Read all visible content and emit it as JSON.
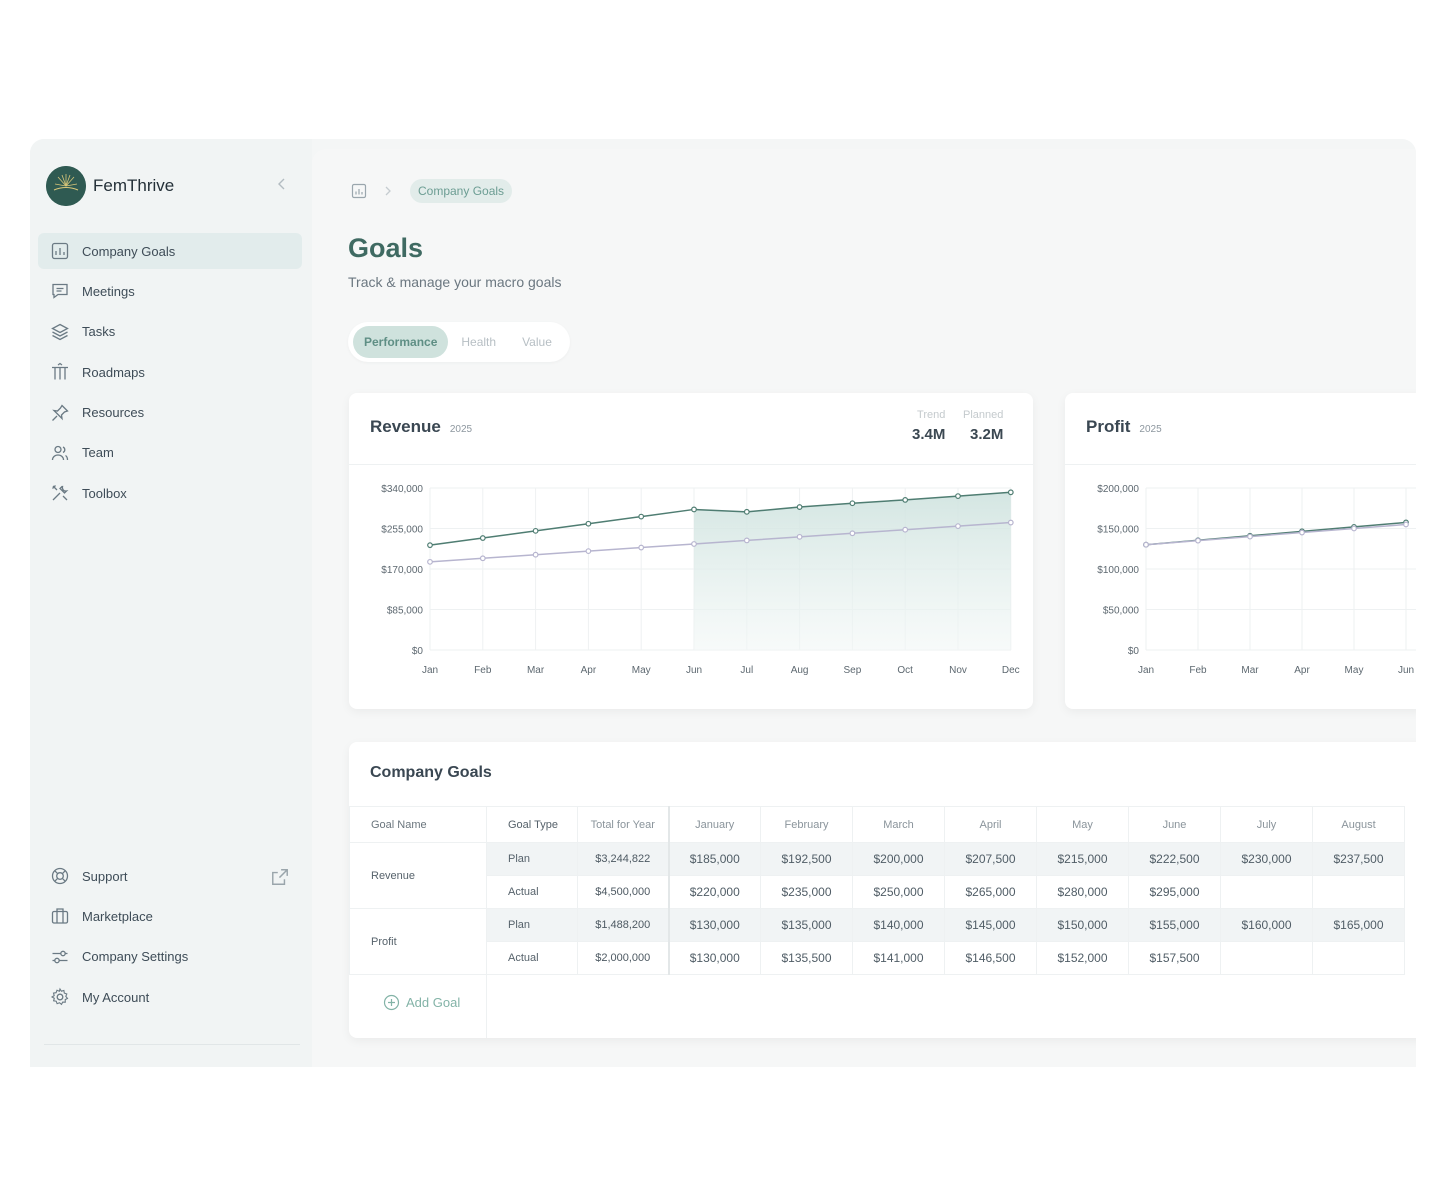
{
  "brand": {
    "name": "FemThrive"
  },
  "colors": {
    "accent": "#3f6a62",
    "accent_light": "#e2ecea",
    "series_trend": "#4f7d72",
    "series_planned": "#b7b5cf"
  },
  "sidebar": {
    "items": [
      {
        "label": "Company Goals",
        "icon": "chart-board-icon",
        "active": true
      },
      {
        "label": "Meetings",
        "icon": "chat-icon"
      },
      {
        "label": "Tasks",
        "icon": "layers-icon"
      },
      {
        "label": "Roadmaps",
        "icon": "roadmap-icon"
      },
      {
        "label": "Resources",
        "icon": "pin-icon"
      },
      {
        "label": "Team",
        "icon": "users-icon"
      },
      {
        "label": "Toolbox",
        "icon": "tools-icon"
      }
    ],
    "bottom_items": [
      {
        "label": "Support",
        "icon": "lifebuoy-icon"
      },
      {
        "label": "Marketplace",
        "icon": "briefcase-icon"
      },
      {
        "label": "Company Settings",
        "icon": "sliders-icon"
      },
      {
        "label": "My Account",
        "icon": "gear-icon"
      }
    ]
  },
  "breadcrumb": {
    "current": "Company Goals"
  },
  "page": {
    "title": "Goals",
    "subtitle": "Track & manage your macro goals"
  },
  "tabs": [
    {
      "label": "Performance",
      "active": true
    },
    {
      "label": "Health"
    },
    {
      "label": "Value"
    }
  ],
  "revenue_card": {
    "title": "Revenue",
    "year": "2025",
    "trend_label": "Trend",
    "trend_value": "3.4M",
    "planned_label": "Planned",
    "planned_value": "3.2M"
  },
  "profit_card": {
    "title": "Profit",
    "year": "2025"
  },
  "chart_data": [
    {
      "type": "line",
      "title": "Revenue",
      "categories": [
        "Jan",
        "Feb",
        "Mar",
        "Apr",
        "May",
        "Jun",
        "Jul",
        "Aug",
        "Sep",
        "Oct",
        "Nov",
        "Dec"
      ],
      "y_ticks": [
        "$340,000",
        "$255,000",
        "$170,000",
        "$85,000",
        "$0"
      ],
      "ylim": [
        0,
        340000
      ],
      "grid": true,
      "series": [
        {
          "name": "Trend",
          "values": [
            220000,
            235000,
            250000,
            265000,
            280000,
            295000,
            290000,
            300000,
            308000,
            315000,
            323000,
            331000
          ]
        },
        {
          "name": "Planned",
          "values": [
            185000,
            192500,
            200000,
            207500,
            215000,
            222500,
            230000,
            237500,
            245000,
            252500,
            260000,
            267500
          ]
        }
      ]
    },
    {
      "type": "line",
      "title": "Profit",
      "categories": [
        "Jan",
        "Feb",
        "Mar",
        "Apr",
        "May",
        "Jun"
      ],
      "y_ticks": [
        "$200,000",
        "$150,000",
        "$100,000",
        "$50,000",
        "$0"
      ],
      "ylim": [
        0,
        200000
      ],
      "grid": true,
      "series": [
        {
          "name": "Actual",
          "values": [
            130000,
            135500,
            141000,
            146500,
            152000,
            157500
          ]
        },
        {
          "name": "Plan",
          "values": [
            130000,
            135000,
            140000,
            145000,
            150000,
            155000
          ]
        }
      ]
    }
  ],
  "goals_table": {
    "title": "Company Goals",
    "headers": [
      "Goal Name",
      "Goal Type",
      "Total for Year",
      "January",
      "February",
      "March",
      "April",
      "May",
      "June",
      "July",
      "August"
    ],
    "rows": [
      {
        "name": "Revenue",
        "type": "Plan",
        "total": "$3,244,822",
        "months": [
          "$185,000",
          "$192,500",
          "$200,000",
          "$207,500",
          "$215,000",
          "$222,500",
          "$230,000",
          "$237,500"
        ]
      },
      {
        "name": "",
        "type": "Actual",
        "total": "$4,500,000",
        "months": [
          "$220,000",
          "$235,000",
          "$250,000",
          "$265,000",
          "$280,000",
          "$295,000",
          "",
          ""
        ]
      },
      {
        "name": "Profit",
        "type": "Plan",
        "total": "$1,488,200",
        "months": [
          "$130,000",
          "$135,000",
          "$140,000",
          "$145,000",
          "$150,000",
          "$155,000",
          "$160,000",
          "$165,000"
        ]
      },
      {
        "name": "",
        "type": "Actual",
        "total": "$2,000,000",
        "months": [
          "$130,000",
          "$135,500",
          "$141,000",
          "$146,500",
          "$152,000",
          "$157,500",
          "",
          ""
        ]
      }
    ],
    "add_label": "Add Goal"
  }
}
